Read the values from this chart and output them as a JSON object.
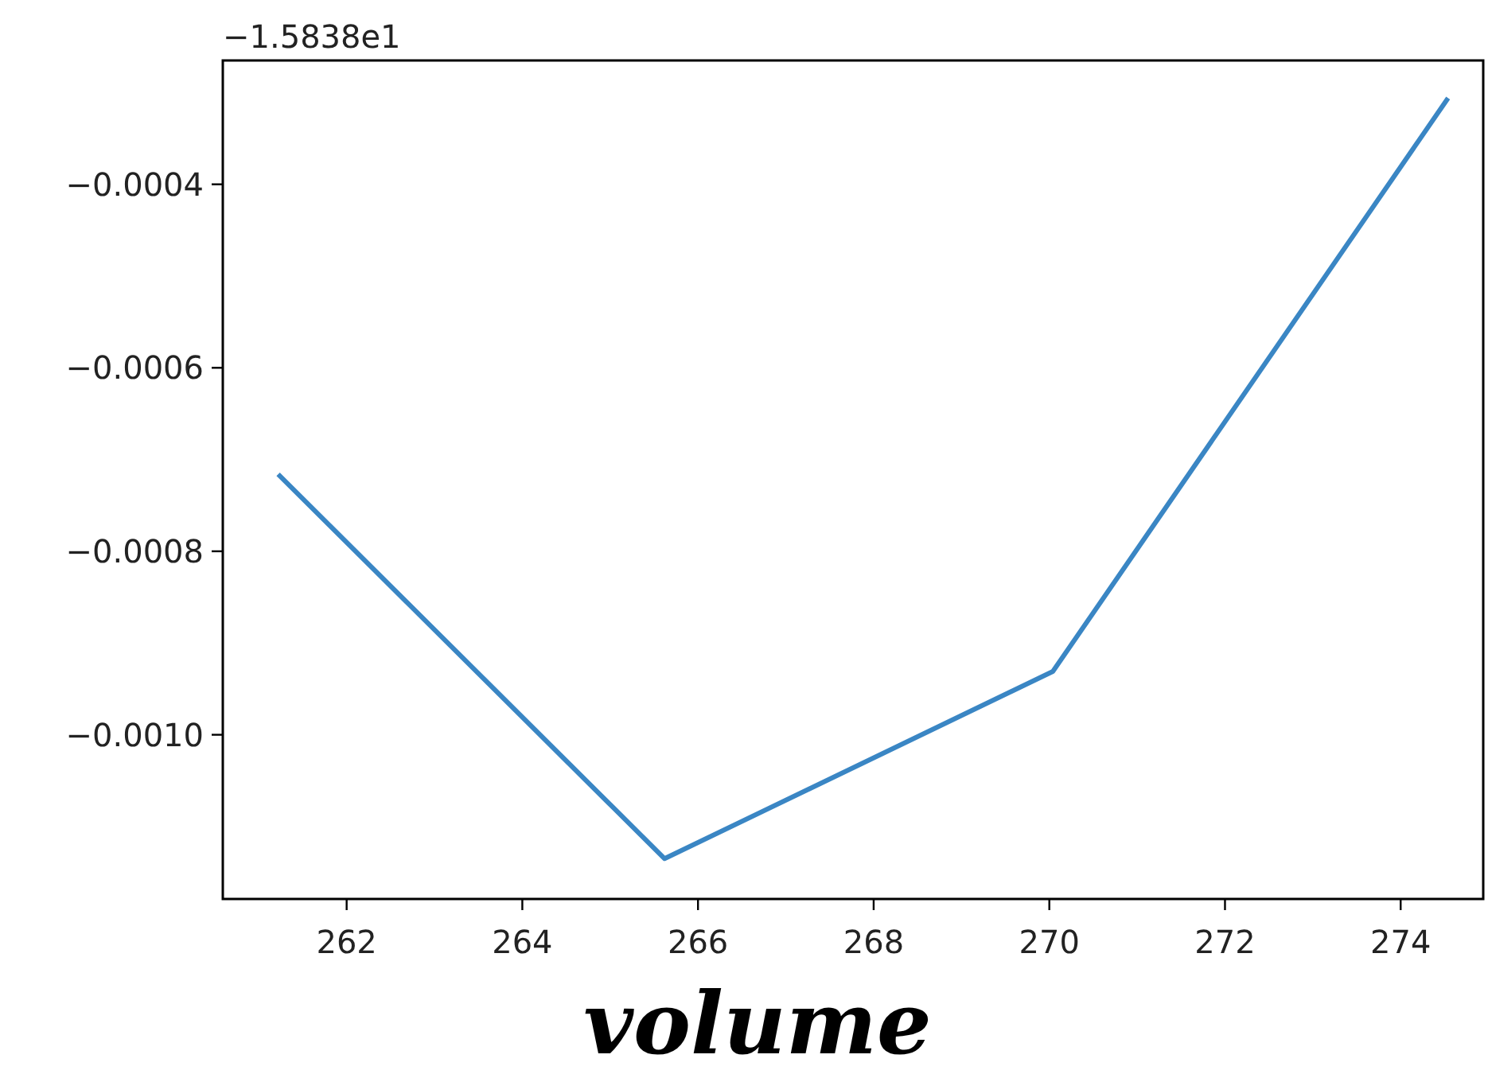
{
  "chart_data": {
    "type": "line",
    "xlabel": "volume",
    "annotations": [
      "−1.5838e1"
    ],
    "x": [
      261.22,
      265.62,
      270.04,
      274.54
    ],
    "series": [
      {
        "color": "#3a86c4",
        "values": [
          -0.000716,
          -0.001135,
          -0.000931,
          -0.000306
        ]
      }
    ],
    "xlim": [
      260.59,
      274.94
    ],
    "ylim": [
      -0.001179,
      -0.000265
    ],
    "xticks": [
      262,
      264,
      266,
      268,
      270,
      272,
      274
    ],
    "yticks": [
      {
        "value": -0.0004,
        "label": "−0.0004"
      },
      {
        "value": -0.0006,
        "label": "−0.0006"
      },
      {
        "value": -0.0008,
        "label": "−0.0008"
      },
      {
        "value": -0.001,
        "label": "−0.0010"
      }
    ],
    "grid": false,
    "marker": "none",
    "line_style": "solid"
  }
}
